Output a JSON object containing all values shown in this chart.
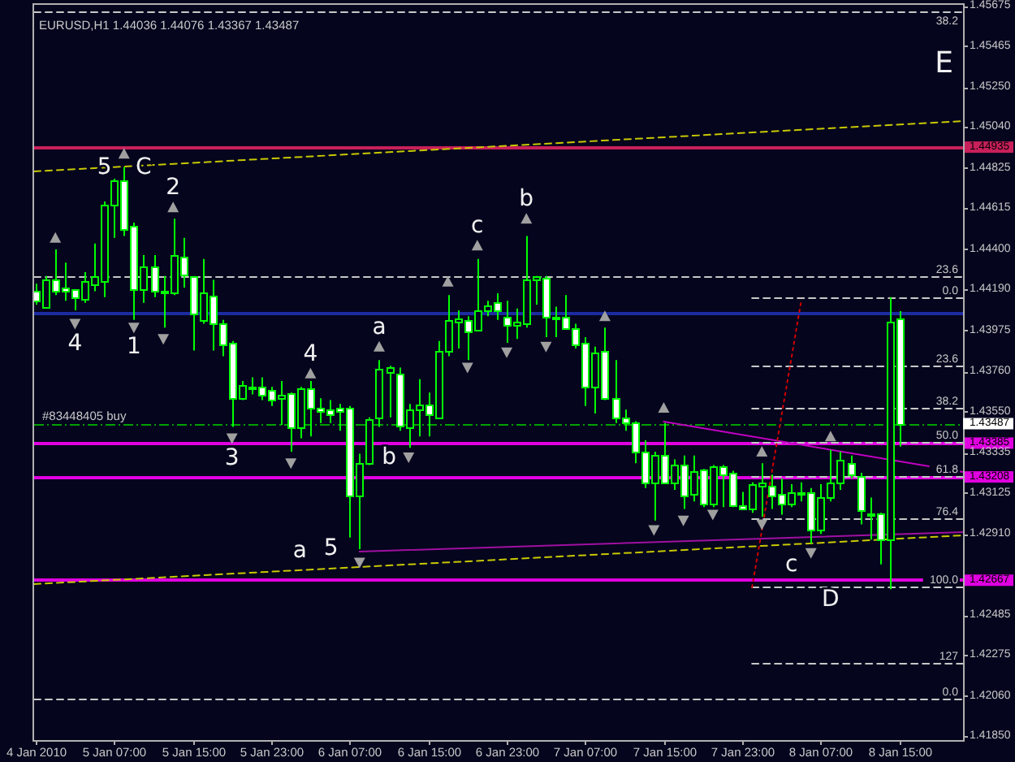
{
  "chart_data": {
    "type": "candlestick",
    "title": "EURUSD,H1  1.44036 1.44076 1.43367 1.43487",
    "color": "#00ff00",
    "x": [
      "2010-01-04T23:00",
      "2010-01-05T00:00",
      "2010-01-05T01:00",
      "2010-01-05T02:00",
      "2010-01-05T03:00",
      "2010-01-05T04:00",
      "2010-01-05T05:00",
      "2010-01-05T06:00",
      "2010-01-05T07:00",
      "2010-01-05T08:00",
      "2010-01-05T09:00",
      "2010-01-05T10:00",
      "2010-01-05T11:00",
      "2010-01-05T12:00",
      "2010-01-05T13:00",
      "2010-01-05T14:00",
      "2010-01-05T15:00",
      "2010-01-05T16:00",
      "2010-01-05T17:00",
      "2010-01-05T18:00",
      "2010-01-05T19:00",
      "2010-01-05T20:00",
      "2010-01-05T21:00",
      "2010-01-05T22:00",
      "2010-01-05T23:00",
      "2010-01-06T00:00",
      "2010-01-06T01:00",
      "2010-01-06T02:00",
      "2010-01-06T03:00",
      "2010-01-06T04:00",
      "2010-01-06T05:00",
      "2010-01-06T06:00",
      "2010-01-06T07:00",
      "2010-01-06T08:00",
      "2010-01-06T09:00",
      "2010-01-06T10:00",
      "2010-01-06T11:00",
      "2010-01-06T12:00",
      "2010-01-06T13:00",
      "2010-01-06T14:00",
      "2010-01-06T15:00",
      "2010-01-06T16:00",
      "2010-01-06T17:00",
      "2010-01-06T18:00",
      "2010-01-06T19:00",
      "2010-01-06T20:00",
      "2010-01-06T21:00",
      "2010-01-06T22:00",
      "2010-01-06T23:00",
      "2010-01-07T00:00",
      "2010-01-07T01:00",
      "2010-01-07T02:00",
      "2010-01-07T03:00",
      "2010-01-07T04:00",
      "2010-01-07T05:00",
      "2010-01-07T06:00",
      "2010-01-07T07:00",
      "2010-01-07T08:00",
      "2010-01-07T09:00",
      "2010-01-07T10:00",
      "2010-01-07T11:00",
      "2010-01-07T12:00",
      "2010-01-07T13:00",
      "2010-01-07T14:00",
      "2010-01-07T15:00",
      "2010-01-07T16:00",
      "2010-01-07T17:00",
      "2010-01-07T18:00",
      "2010-01-07T19:00",
      "2010-01-07T20:00",
      "2010-01-07T21:00",
      "2010-01-07T22:00",
      "2010-01-07T23:00",
      "2010-01-08T00:00",
      "2010-01-08T01:00",
      "2010-01-08T02:00",
      "2010-01-08T03:00",
      "2010-01-08T04:00",
      "2010-01-08T05:00",
      "2010-01-08T06:00",
      "2010-01-08T07:00",
      "2010-01-08T08:00",
      "2010-01-08T09:00",
      "2010-01-08T10:00",
      "2010-01-08T11:00",
      "2010-01-08T12:00",
      "2010-01-08T13:00",
      "2010-01-08T14:00",
      "2010-01-08T15:00"
    ],
    "ohlc": [
      [
        1.4418,
        1.4422,
        1.4411,
        1.4413
      ],
      [
        1.441,
        1.4426,
        1.4409,
        1.4424
      ],
      [
        1.4424,
        1.444,
        1.4416,
        1.4418
      ],
      [
        1.442,
        1.4433,
        1.4413,
        1.4418
      ],
      [
        1.4419,
        1.4419,
        1.4408,
        1.4415
      ],
      [
        1.4414,
        1.4428,
        1.4412,
        1.4423
      ],
      [
        1.4422,
        1.4443,
        1.4418,
        1.4426
      ],
      [
        1.4423,
        1.4465,
        1.4415,
        1.4463
      ],
      [
        1.4463,
        1.4477,
        1.4446,
        1.4476
      ],
      [
        1.4476,
        1.4483,
        1.4447,
        1.4451
      ],
      [
        1.4452,
        1.4454,
        1.4403,
        1.4419
      ],
      [
        1.4419,
        1.4437,
        1.4412,
        1.4431
      ],
      [
        1.4431,
        1.4437,
        1.4415,
        1.4418
      ],
      [
        1.4418,
        1.4426,
        1.4399,
        1.4417
      ],
      [
        1.4417,
        1.4456,
        1.4416,
        1.4437
      ],
      [
        1.4436,
        1.4446,
        1.442,
        1.4427
      ],
      [
        1.4426,
        1.4426,
        1.4387,
        1.4406
      ],
      [
        1.4403,
        1.4435,
        1.4401,
        1.4417
      ],
      [
        1.4416,
        1.4424,
        1.4387,
        1.4401
      ],
      [
        1.4401,
        1.4403,
        1.4384,
        1.439
      ],
      [
        1.4391,
        1.4392,
        1.4347,
        1.4362
      ],
      [
        1.4362,
        1.4371,
        1.4361,
        1.4369
      ],
      [
        1.4368,
        1.4373,
        1.4364,
        1.4367
      ],
      [
        1.4368,
        1.4373,
        1.4361,
        1.4364
      ],
      [
        1.4366,
        1.4368,
        1.4358,
        1.4361
      ],
      [
        1.4362,
        1.4371,
        1.4348,
        1.4364
      ],
      [
        1.4365,
        1.4365,
        1.4334,
        1.4347
      ],
      [
        1.4347,
        1.4368,
        1.4341,
        1.4367
      ],
      [
        1.4367,
        1.4371,
        1.4342,
        1.4357
      ],
      [
        1.4357,
        1.4362,
        1.4349,
        1.4355
      ],
      [
        1.4356,
        1.4361,
        1.4349,
        1.4354
      ],
      [
        1.4357,
        1.4359,
        1.4345,
        1.4355
      ],
      [
        1.4357,
        1.4358,
        1.4289,
        1.4311
      ],
      [
        1.4311,
        1.4333,
        1.4283,
        1.4328
      ],
      [
        1.4328,
        1.4352,
        1.4327,
        1.4351
      ],
      [
        1.4352,
        1.4382,
        1.4347,
        1.4377
      ],
      [
        1.4376,
        1.4379,
        1.4352,
        1.4378
      ],
      [
        1.4375,
        1.4378,
        1.4345,
        1.4348
      ],
      [
        1.4347,
        1.4359,
        1.4336,
        1.4356
      ],
      [
        1.4356,
        1.4372,
        1.4342,
        1.4359
      ],
      [
        1.4359,
        1.4365,
        1.4342,
        1.4354
      ],
      [
        1.4352,
        1.4392,
        1.4351,
        1.4387
      ],
      [
        1.4387,
        1.4416,
        1.4384,
        1.4403
      ],
      [
        1.4402,
        1.4408,
        1.4388,
        1.4404
      ],
      [
        1.4403,
        1.4405,
        1.4382,
        1.4397
      ],
      [
        1.4398,
        1.4435,
        1.4397,
        1.4408
      ],
      [
        1.4408,
        1.4413,
        1.4405,
        1.4411
      ],
      [
        1.4412,
        1.4417,
        1.4403,
        1.4408
      ],
      [
        1.4405,
        1.4413,
        1.4391,
        1.44
      ],
      [
        1.44,
        1.4409,
        1.4393,
        1.4402
      ],
      [
        1.4401,
        1.4447,
        1.4399,
        1.4424
      ],
      [
        1.4424,
        1.4426,
        1.4411,
        1.4426
      ],
      [
        1.4425,
        1.4426,
        1.4394,
        1.4405
      ],
      [
        1.4405,
        1.441,
        1.4394,
        1.4404
      ],
      [
        1.4405,
        1.4416,
        1.4398,
        1.4399
      ],
      [
        1.4399,
        1.4401,
        1.4388,
        1.439
      ],
      [
        1.4391,
        1.4394,
        1.4358,
        1.4368
      ],
      [
        1.4368,
        1.4389,
        1.4354,
        1.4386
      ],
      [
        1.4387,
        1.4399,
        1.4361,
        1.4362
      ],
      [
        1.4362,
        1.4382,
        1.4349,
        1.4352
      ],
      [
        1.4352,
        1.4356,
        1.4345,
        1.4349
      ],
      [
        1.4349,
        1.435,
        1.4328,
        1.4334
      ],
      [
        1.4334,
        1.434,
        1.4315,
        1.4318
      ],
      [
        1.4318,
        1.4334,
        1.4298,
        1.4332
      ],
      [
        1.4332,
        1.4349,
        1.4317,
        1.4318
      ],
      [
        1.4318,
        1.433,
        1.4314,
        1.4327
      ],
      [
        1.4327,
        1.4332,
        1.4304,
        1.4311
      ],
      [
        1.4312,
        1.4332,
        1.4308,
        1.4324
      ],
      [
        1.4325,
        1.4325,
        1.4305,
        1.4307
      ],
      [
        1.4307,
        1.4327,
        1.4305,
        1.4326
      ],
      [
        1.4326,
        1.4327,
        1.4305,
        1.4322
      ],
      [
        1.4323,
        1.4324,
        1.4305,
        1.4306
      ],
      [
        1.4306,
        1.4313,
        1.4304,
        1.4304
      ],
      [
        1.4304,
        1.4318,
        1.4302,
        1.4317
      ],
      [
        1.4316,
        1.4328,
        1.43,
        1.4318
      ],
      [
        1.4316,
        1.4322,
        1.4304,
        1.4311
      ],
      [
        1.4312,
        1.432,
        1.4301,
        1.4307
      ],
      [
        1.4307,
        1.4317,
        1.4305,
        1.4313
      ],
      [
        1.4313,
        1.4318,
        1.4308,
        1.4312
      ],
      [
        1.4313,
        1.4315,
        1.4286,
        1.4293
      ],
      [
        1.4293,
        1.4317,
        1.4291,
        1.431
      ],
      [
        1.431,
        1.4335,
        1.4308,
        1.4318
      ],
      [
        1.4318,
        1.4334,
        1.4314,
        1.433
      ],
      [
        1.4328,
        1.4332,
        1.432,
        1.4322
      ],
      [
        1.4321,
        1.4323,
        1.4296,
        1.4303
      ],
      [
        1.4301,
        1.431,
        1.4288,
        1.4302
      ],
      [
        1.4302,
        1.4302,
        1.4275,
        1.4288
      ],
      [
        1.4288,
        1.4415,
        1.4262,
        1.4402
      ],
      [
        1.44036,
        1.44076,
        1.43367,
        1.43487
      ]
    ],
    "series": [
      {
        "type": "scatter",
        "marker": "triangle",
        "color": "#a0a0a0",
        "x": [
          "2010-01-05T01:00",
          "2010-01-05T08:00",
          "2010-01-05T13:00",
          "2010-01-06T03:00",
          "2010-01-06T10:00",
          "2010-01-06T17:00",
          "2010-01-06T20:00",
          "2010-01-07T01:00",
          "2010-01-07T09:00",
          "2010-01-07T15:00",
          "2010-01-08T01:00",
          "2010-01-08T08:00"
        ],
        "values": [
          1.4446,
          1.449,
          1.4462,
          1.4375,
          1.4389,
          1.4423,
          1.4442,
          1.4456,
          1.4405,
          1.4357,
          1.4334,
          1.4342
        ]
      },
      {
        "type": "scatter",
        "marker": "triangle",
        "color": "#a0a0a0",
        "x": [
          "2010-01-05T03:00",
          "2010-01-05T09:00",
          "2010-01-05T12:00",
          "2010-01-05T19:00",
          "2010-01-06T01:00",
          "2010-01-06T08:00",
          "2010-01-06T13:00",
          "2010-01-06T19:00",
          "2010-01-06T23:00",
          "2010-01-07T03:00",
          "2010-01-07T14:00",
          "2010-01-07T17:00",
          "2010-01-07T20:00",
          "2010-01-08T01:00",
          "2010-01-08T06:00"
        ],
        "values": [
          1.4401,
          1.4399,
          1.4393,
          1.4341,
          1.4328,
          1.4276,
          1.4331,
          1.4378,
          1.4386,
          1.4389,
          1.4293,
          1.4298,
          1.4301,
          1.4296,
          1.4281
        ]
      },
      {
        "type": "line",
        "name": "0.0",
        "color": "#c8c8c8",
        "line_style": "dashed",
        "x": [
          "2010-01-08T00:00",
          "2010-01-08T21:30"
        ],
        "values": [
          1.4415,
          1.4415
        ]
      },
      {
        "type": "line",
        "name": "23.6",
        "color": "#c8c8c8",
        "line_style": "dashed",
        "x": [
          "2010-01-08T00:00",
          "2010-01-08T21:30"
        ],
        "values": [
          1.4379,
          1.4379
        ]
      },
      {
        "type": "line",
        "name": "38.2",
        "color": "#c8c8c8",
        "line_style": "dashed",
        "x": [
          "2010-01-08T00:00",
          "2010-01-08T21:30"
        ],
        "values": [
          1.4357,
          1.4357
        ]
      },
      {
        "type": "line",
        "name": "50.0",
        "color": "#c8c8c8",
        "line_style": "dashed",
        "x": [
          "2010-01-08T00:00",
          "2010-01-08T21:30"
        ],
        "values": [
          1.4339,
          1.4339
        ]
      },
      {
        "type": "line",
        "name": "61.8",
        "color": "#c8c8c8",
        "line_style": "dashed",
        "x": [
          "2010-01-08T00:00",
          "2010-01-08T21:30"
        ],
        "values": [
          1.4321,
          1.4321
        ]
      },
      {
        "type": "line",
        "name": "76.4",
        "color": "#c8c8c8",
        "line_style": "dashed",
        "x": [
          "2010-01-08T00:00",
          "2010-01-08T21:30"
        ],
        "values": [
          1.4299,
          1.4299
        ]
      },
      {
        "type": "line",
        "name": "100.0",
        "color": "#c8c8c8",
        "line_style": "dashed",
        "x": [
          "2010-01-08T00:00",
          "2010-01-08T21:30"
        ],
        "values": [
          1.4263,
          1.4263
        ]
      },
      {
        "type": "line",
        "name": "127",
        "color": "#c8c8c8",
        "line_style": "dashed",
        "x": [
          "2010-01-08T00:00",
          "2010-01-08T21:30"
        ],
        "values": [
          1.4223,
          1.4223
        ]
      },
      {
        "type": "line",
        "name": "38.2",
        "color": "#c8c8c8",
        "line_style": "dashed",
        "x": [
          "2010-01-04T22:50",
          "2010-01-08T21:30"
        ],
        "values": [
          1.4565,
          1.4565
        ]
      },
      {
        "type": "line",
        "name": "23.6",
        "color": "#c8c8c8",
        "line_style": "dashed",
        "x": [
          "2010-01-04T22:50",
          "2010-01-08T21:30"
        ],
        "values": [
          1.4426,
          1.4426
        ]
      },
      {
        "type": "line",
        "name": "0.0",
        "color": "#c8c8c8",
        "line_style": "dashed",
        "x": [
          "2010-01-04T22:50",
          "2010-01-08T21:30"
        ],
        "values": [
          1.4205,
          1.4205
        ]
      },
      {
        "type": "line",
        "color": "#c8c800",
        "line_style": "dashed",
        "x": [
          "2010-01-04T22:50",
          "2010-01-08T21:30"
        ],
        "values": [
          1.4481,
          1.4508
        ]
      },
      {
        "type": "line",
        "color": "#c8c800",
        "line_style": "dashed",
        "x": [
          "2010-01-04T22:50",
          "2010-01-08T21:30"
        ],
        "values": [
          1.4265,
          1.4291
        ]
      },
      {
        "type": "line",
        "color": "#a010a0",
        "line_style": "solid",
        "x": [
          "2010-01-06T08:00",
          "2010-01-08T21:30"
        ],
        "values": [
          1.4282,
          1.4292
        ]
      },
      {
        "type": "line",
        "color": "#c000c0",
        "line_style": "solid",
        "x": [
          "2010-01-07T15:00",
          "2010-01-08T21:30"
        ],
        "values": [
          1.435,
          1.4324
        ]
      },
      {
        "type": "line",
        "color": "#d00000",
        "line_style": "dotted",
        "x": [
          "2010-01-08T00:00",
          "2010-01-08T05:00"
        ],
        "values": [
          1.4263,
          1.4413
        ]
      }
    ],
    "ref_lines": [
      {
        "axis": "y",
        "value": 1.44935,
        "label": "1.44935",
        "color": "#c8205a",
        "line_style": "solid"
      },
      {
        "axis": "y",
        "value": 1.4406,
        "color": "#1c2ca0",
        "line_style": "solid"
      },
      {
        "axis": "y",
        "value": 1.43385,
        "label": "1.43385",
        "color": "#e000e0",
        "line_style": "solid"
      },
      {
        "axis": "y",
        "value": 1.43208,
        "label": "1.43208",
        "color": "#e000e0",
        "line_style": "solid"
      },
      {
        "axis": "y",
        "value": 1.42667,
        "label": "1.42667",
        "color": "#e000e0",
        "line_style": "solid"
      },
      {
        "axis": "y",
        "value": 1.43487,
        "label": "#83448405 buy",
        "color": "#00a000",
        "line_style": "dashed"
      }
    ],
    "annotations": [
      {
        "text": "5",
        "x": "2010-01-05T08:00",
        "y": 1.4483
      },
      {
        "text": "C",
        "x": "2010-01-05T08:00",
        "y": 1.4483
      },
      {
        "text": "2",
        "x": "2010-01-05T13:00",
        "y": 1.4462
      },
      {
        "text": "4",
        "x": "2010-01-05T03:00",
        "y": 1.4401
      },
      {
        "text": "1",
        "x": "2010-01-05T09:00",
        "y": 1.4399
      },
      {
        "text": "3",
        "x": "2010-01-05T19:00",
        "y": 1.4341
      },
      {
        "text": "4",
        "x": "2010-01-06T03:00",
        "y": 1.4375
      },
      {
        "text": "a",
        "x": "2010-01-06T10:00",
        "y": 1.4389
      },
      {
        "text": "b",
        "x": "2010-01-06T13:00",
        "y": 1.4331
      },
      {
        "text": "c",
        "x": "2010-01-06T20:00",
        "y": 1.4442
      },
      {
        "text": "b",
        "x": "2010-01-07T01:00",
        "y": 1.4456
      },
      {
        "text": "a",
        "x": "2010-01-06T01:55",
        "y": 1.4272
      },
      {
        "text": "5",
        "x": "2010-01-06T05:05",
        "y": 1.4273
      },
      {
        "text": "c",
        "x": "2010-01-08T06:00",
        "y": 1.4281
      },
      {
        "text": "D",
        "x": "2010-01-08T08:00",
        "y": 1.42667
      },
      "E",
      {
        "text": "1.43487",
        "x": "2010-01-08T21:30",
        "y": 1.43487
      }
    ],
    "xlim": [
      "2010-01-04T22:50",
      "2010-01-08T21:30"
    ],
    "xticks": [
      {
        "value": "2010-01-04T23:00",
        "label": "4 Jan 2010"
      },
      {
        "value": "2010-01-05T07:00",
        "label": "5 Jan 07:00"
      },
      {
        "value": "2010-01-05T15:00",
        "label": "5 Jan 15:00"
      },
      {
        "value": "2010-01-05T23:00",
        "label": "5 Jan 23:00"
      },
      {
        "value": "2010-01-06T07:00",
        "label": "6 Jan 07:00"
      },
      {
        "value": "2010-01-06T15:00",
        "label": "6 Jan 15:00"
      },
      {
        "value": "2010-01-06T23:00",
        "label": "6 Jan 23:00"
      },
      {
        "value": "2010-01-07T07:00",
        "label": "7 Jan 07:00"
      },
      {
        "value": "2010-01-07T15:00",
        "label": "7 Jan 15:00"
      },
      {
        "value": "2010-01-07T23:00",
        "label": "7 Jan 23:00"
      },
      {
        "value": "2010-01-08T07:00",
        "label": "8 Jan 07:00"
      },
      {
        "value": "2010-01-08T15:00",
        "label": "8 Jan 15:00"
      }
    ],
    "ylim": [
      1.4183,
      1.4568
    ],
    "yticks": [
      1.45675,
      1.45465,
      {
        "value": 1.4525,
        "label": "1.45250"
      },
      {
        "value": 1.4504,
        "label": "1.45040"
      },
      1.44825,
      1.44615,
      {
        "value": 1.444,
        "label": "1.44400"
      },
      {
        "value": 1.4419,
        "label": "1.44190"
      },
      1.43975,
      {
        "value": 1.4376,
        "label": "1.43760"
      },
      {
        "value": 1.4355,
        "label": "1.43550"
      },
      1.43335,
      1.43125,
      {
        "value": 1.4291,
        "label": "1.42910"
      },
      1.42485,
      1.42275,
      {
        "value": 1.4206,
        "label": "1.42060"
      },
      {
        "value": 1.4185,
        "label": "1.41850"
      }
    ]
  }
}
